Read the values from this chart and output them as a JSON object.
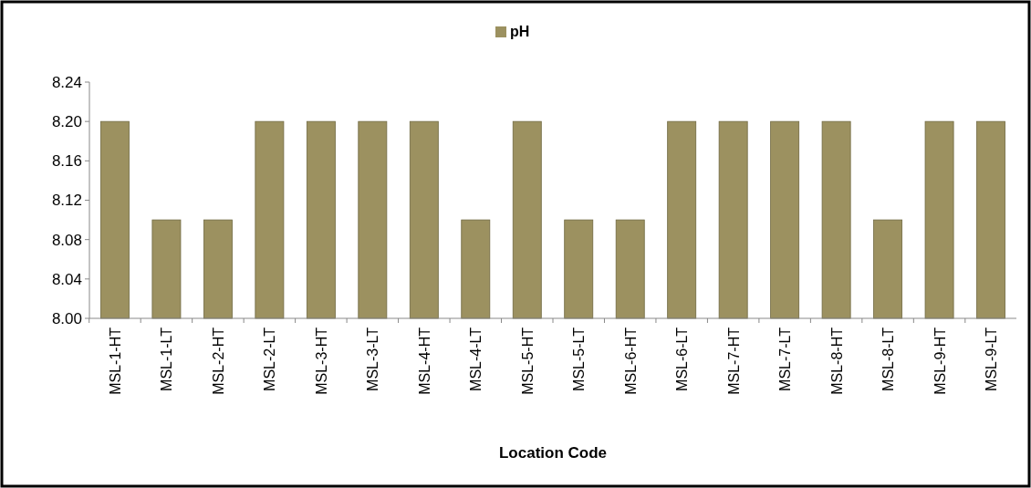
{
  "chart_data": {
    "type": "bar",
    "xlabel": "Location Code",
    "categories": [
      "MSL-1-HT",
      "MSL-1-LT",
      "MSL-2-HT",
      "MSL-2-LT",
      "MSL-3-HT",
      "MSL-3-LT",
      "MSL-4-HT",
      "MSL-4-LT",
      "MSL-5-HT",
      "MSL-5-LT",
      "MSL-6-HT",
      "MSL-6-LT",
      "MSL-7-HT",
      "MSL-7-LT",
      "MSL-8-HT",
      "MSL-8-LT",
      "MSL-9-HT",
      "MSL-9-LT"
    ],
    "series": [
      {
        "name": "pH",
        "color": "#9c9160",
        "values": [
          8.2,
          8.1,
          8.1,
          8.2,
          8.2,
          8.2,
          8.2,
          8.1,
          8.2,
          8.1,
          8.1,
          8.2,
          8.2,
          8.2,
          8.2,
          8.1,
          8.2,
          8.2
        ]
      }
    ],
    "ylim": [
      8.0,
      8.24
    ],
    "yticks": [
      {
        "value": 8.0,
        "label": "8.00"
      },
      {
        "value": 8.04,
        "label": "8.04"
      },
      {
        "value": 8.08,
        "label": "8.08"
      },
      {
        "value": 8.12,
        "label": "8.12"
      },
      {
        "value": 8.16,
        "label": "8.16"
      },
      {
        "value": 8.2,
        "label": "8.20"
      },
      {
        "value": 8.24,
        "label": "8.24"
      }
    ],
    "legend": "top"
  }
}
